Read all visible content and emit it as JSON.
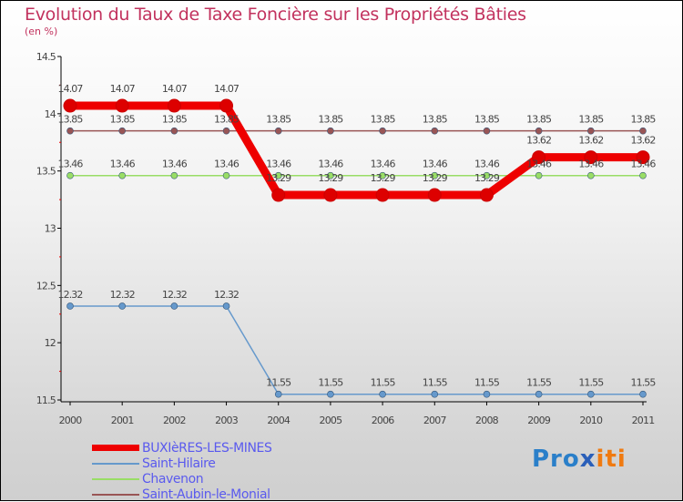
{
  "chart_data": {
    "type": "line",
    "title": "Evolution du Taux de Taxe Foncière sur les Propriétés Bâties",
    "subtitle": "(en %)",
    "x": [
      "2000",
      "2001",
      "2002",
      "2003",
      "2004",
      "2005",
      "2006",
      "2007",
      "2008",
      "2009",
      "2010",
      "2011"
    ],
    "ylim": [
      11.5,
      14.5
    ],
    "yticks": [
      "11.5",
      "12",
      "12.5",
      "13",
      "13.5",
      "14",
      "14.5"
    ],
    "series": [
      {
        "name": "BUXIèRES-LES-MINES",
        "color": "#ee0000",
        "values": [
          14.07,
          14.07,
          14.07,
          14.07,
          13.29,
          13.29,
          13.29,
          13.29,
          13.29,
          13.62,
          13.62,
          13.62
        ],
        "labels": [
          "14.07",
          "14.07",
          "14.07",
          "14.07",
          "13.29",
          "13.29",
          "13.29",
          "13.29",
          "13.29",
          "13.62",
          "13.62",
          "13.62"
        ]
      },
      {
        "name": "Saint-Hilaire",
        "color": "#6699cc",
        "values": [
          12.32,
          12.32,
          12.32,
          12.32,
          11.55,
          11.55,
          11.55,
          11.55,
          11.55,
          11.55,
          11.55,
          11.55
        ],
        "labels": [
          "12.32",
          "12.32",
          "12.32",
          "12.32",
          "11.55",
          "11.55",
          "11.55",
          "11.55",
          "11.55",
          "11.55",
          "11.55",
          "11.55"
        ]
      },
      {
        "name": "Chavenon",
        "color": "#99dd66",
        "values": [
          13.46,
          13.46,
          13.46,
          13.46,
          13.46,
          13.46,
          13.46,
          13.46,
          13.46,
          13.46,
          13.46,
          13.46
        ],
        "labels": [
          "13.46",
          "13.46",
          "13.46",
          "13.46",
          "13.46",
          "13.46",
          "13.46",
          "13.46",
          "13.46",
          "13.46",
          "13.46",
          "13.46"
        ]
      },
      {
        "name": "Saint-Aubin-le-Monial",
        "color": "#995555",
        "values": [
          13.85,
          13.85,
          13.85,
          13.85,
          13.85,
          13.85,
          13.85,
          13.85,
          13.85,
          13.85,
          13.85,
          13.85
        ],
        "labels": [
          "13.85",
          "13.85",
          "13.85",
          "13.85",
          "13.85",
          "13.85",
          "13.85",
          "13.85",
          "13.85",
          "13.85",
          "13.85",
          "13.85"
        ]
      }
    ],
    "legend": "bottom-left",
    "grid": false
  },
  "logo": {
    "p1": "Pro",
    "x": "x",
    "p2": "iti"
  }
}
